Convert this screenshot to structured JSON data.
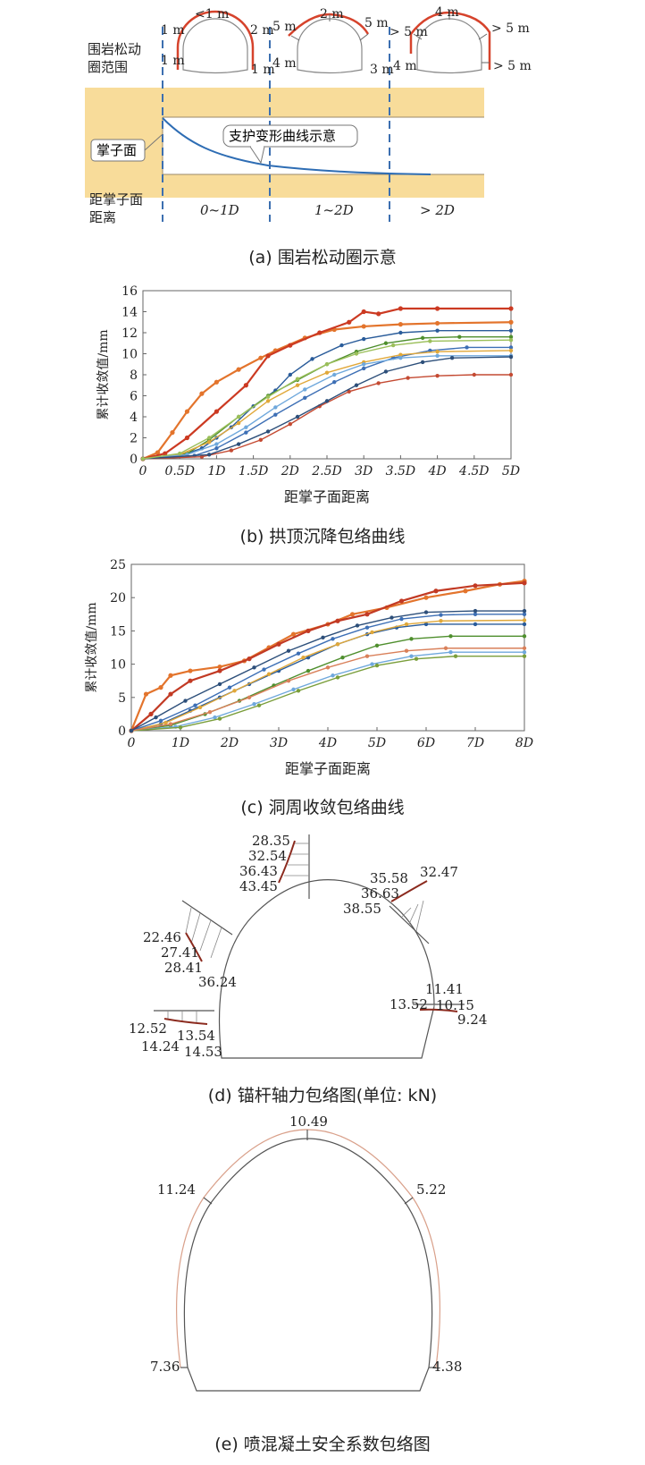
{
  "panel_a": {
    "caption": "(a) 围岩松动圈示意",
    "loose_zone_label_1": "围岩松动",
    "loose_zone_label_2": "圈范围",
    "face_label": "掌子面",
    "curve_label": "支护变形曲线示意",
    "dist_label_1": "距掌子面",
    "dist_label_2": "距离",
    "zones": [
      "0~1D",
      "1~2D",
      "> 2D"
    ],
    "tunnel1": {
      "crown": "<1 m",
      "left_top": "1 m",
      "right_top": "2 m",
      "left_side": "1 m",
      "right_side": "1 m"
    },
    "tunnel2": {
      "crown": "2 m",
      "left_top": "5 m",
      "right_top": "5 m",
      "left_side": "4 m",
      "right_side": "3 m"
    },
    "tunnel3": {
      "crown": "4 m",
      "left_top": "> 5 m",
      "right_top": "> 5 m",
      "left_side": "4 m",
      "right_side": "> 5 m"
    },
    "colors": {
      "band": "#f8dc9a",
      "curve": "#2e6db4",
      "zone_red": "#d6432c",
      "dash": "#3c6fb0"
    }
  },
  "panel_b": {
    "caption": "(b) 拱顶沉降包络曲线",
    "chart_data": {
      "type": "line",
      "ylabel": "累计收敛值/mm",
      "xlabel": "距掌子面距离",
      "x_ticks": [
        "0",
        "0.5D",
        "1D",
        "1.5D",
        "2D",
        "2.5D",
        "3D",
        "3.5D",
        "4D",
        "4.5D",
        "5D"
      ],
      "y_ticks": [
        "0",
        "2",
        "4",
        "6",
        "8",
        "10",
        "12",
        "14",
        "16"
      ],
      "xlim": [
        0,
        5
      ],
      "ylim": [
        0,
        16
      ],
      "series": [
        {
          "name": "s1",
          "color": "#e3742c",
          "x": [
            0,
            0.2,
            0.4,
            0.6,
            0.8,
            1.0,
            1.3,
            1.6,
            1.8,
            2.2,
            2.6,
            3.0,
            3.5,
            4.0,
            5.0
          ],
          "y": [
            0,
            0.6,
            2.5,
            4.5,
            6.2,
            7.3,
            8.5,
            9.6,
            10.3,
            11.5,
            12.3,
            12.6,
            12.8,
            12.9,
            13.0
          ]
        },
        {
          "name": "s2",
          "color": "#cc3a22",
          "x": [
            0,
            0.3,
            0.6,
            1.0,
            1.4,
            1.7,
            2.0,
            2.4,
            2.8,
            3.0,
            3.2,
            3.5,
            4.0,
            5.0
          ],
          "y": [
            0,
            0.5,
            2.0,
            4.5,
            7.0,
            9.8,
            10.8,
            12.0,
            13.0,
            14.0,
            13.8,
            14.3,
            14.3,
            14.3
          ]
        },
        {
          "name": "s3",
          "color": "#2a5c9a",
          "x": [
            0,
            0.5,
            0.8,
            1.0,
            1.2,
            1.5,
            1.8,
            2.0,
            2.3,
            2.7,
            3.0,
            3.5,
            4.0,
            5.0
          ],
          "y": [
            0,
            0.3,
            1.0,
            2.0,
            3.0,
            5.0,
            6.5,
            8.0,
            9.5,
            10.8,
            11.4,
            12.0,
            12.2,
            12.2
          ]
        },
        {
          "name": "s4",
          "color": "#4f8f2e",
          "x": [
            0,
            0.6,
            0.9,
            1.3,
            1.7,
            2.1,
            2.5,
            2.9,
            3.3,
            3.8,
            4.3,
            5.0
          ],
          "y": [
            0,
            0.5,
            1.8,
            4.0,
            6.0,
            7.5,
            9.0,
            10.2,
            11.0,
            11.5,
            11.6,
            11.6
          ]
        },
        {
          "name": "s5",
          "color": "#3d6fb5",
          "x": [
            0,
            0.7,
            1.0,
            1.4,
            1.8,
            2.2,
            2.6,
            3.0,
            3.4,
            3.9,
            4.4,
            5.0
          ],
          "y": [
            0,
            0.3,
            1.0,
            2.5,
            4.2,
            5.8,
            7.3,
            8.6,
            9.6,
            10.3,
            10.6,
            10.6
          ]
        },
        {
          "name": "s6",
          "color": "#c44a32",
          "x": [
            0,
            0.8,
            1.2,
            1.6,
            2.0,
            2.4,
            2.8,
            3.2,
            3.6,
            4.0,
            4.5,
            5.0
          ],
          "y": [
            0,
            0.2,
            0.8,
            1.8,
            3.3,
            5.0,
            6.4,
            7.2,
            7.7,
            7.9,
            8.0,
            8.0
          ]
        },
        {
          "name": "s7",
          "color": "#e0a83a",
          "x": [
            0,
            0.5,
            0.9,
            1.3,
            1.7,
            2.1,
            2.5,
            3.0,
            3.5,
            4.0,
            5.0
          ],
          "y": [
            0,
            0.4,
            1.6,
            3.4,
            5.5,
            7.0,
            8.2,
            9.2,
            9.9,
            10.2,
            10.3
          ]
        },
        {
          "name": "s8",
          "color": "#6fa8dc",
          "x": [
            0,
            0.6,
            1.0,
            1.4,
            1.8,
            2.2,
            2.6,
            3.0,
            3.5,
            4.0,
            5.0
          ],
          "y": [
            0,
            0.4,
            1.4,
            3.0,
            4.9,
            6.6,
            8.0,
            9.0,
            9.6,
            9.8,
            9.8
          ]
        },
        {
          "name": "s9",
          "color": "#2d4f7a",
          "x": [
            0,
            0.9,
            1.3,
            1.7,
            2.1,
            2.5,
            2.9,
            3.3,
            3.8,
            4.2,
            5.0
          ],
          "y": [
            0,
            0.4,
            1.4,
            2.6,
            4.0,
            5.5,
            7.0,
            8.3,
            9.2,
            9.6,
            9.7
          ]
        },
        {
          "name": "s10",
          "color": "#9bbf5a",
          "x": [
            0,
            0.5,
            0.9,
            1.3,
            1.7,
            2.1,
            2.5,
            2.9,
            3.4,
            3.9,
            5.0
          ],
          "y": [
            0,
            0.5,
            2.0,
            4.0,
            5.9,
            7.6,
            9.0,
            10.0,
            10.8,
            11.2,
            11.3
          ]
        }
      ]
    }
  },
  "panel_c": {
    "caption": "(c) 洞周收敛包络曲线",
    "chart_data": {
      "type": "line",
      "ylabel": "累计收敛值/mm",
      "xlabel": "距掌子面距离",
      "x_ticks": [
        "0",
        "1D",
        "2D",
        "3D",
        "4D",
        "5D",
        "6D",
        "7D",
        "8D"
      ],
      "y_ticks": [
        "0",
        "5",
        "10",
        "15",
        "20",
        "25"
      ],
      "xlim": [
        0,
        8
      ],
      "ylim": [
        0,
        25
      ],
      "series": [
        {
          "name": "s1",
          "color": "#e3742c",
          "x": [
            0,
            0.3,
            0.6,
            0.8,
            1.2,
            1.8,
            2.3,
            2.8,
            3.3,
            4.0,
            4.5,
            5.2,
            6.0,
            6.8,
            7.5,
            8.0
          ],
          "y": [
            0,
            5.5,
            6.5,
            8.3,
            9.0,
            9.6,
            10.5,
            12.5,
            14.5,
            16.0,
            17.5,
            18.5,
            20.0,
            21.0,
            22.0,
            22.5
          ]
        },
        {
          "name": "s2",
          "color": "#c23a24",
          "x": [
            0,
            0.4,
            0.8,
            1.2,
            1.8,
            2.4,
            3.0,
            3.6,
            4.2,
            4.8,
            5.5,
            6.2,
            7.0,
            8.0
          ],
          "y": [
            0,
            2.5,
            5.5,
            7.5,
            9.0,
            10.8,
            13.0,
            15.0,
            16.5,
            17.5,
            19.5,
            21.0,
            21.8,
            22.2
          ]
        },
        {
          "name": "s3",
          "color": "#2a5c9a",
          "x": [
            0,
            0.6,
            1.2,
            1.8,
            2.4,
            3.0,
            3.6,
            4.2,
            4.8,
            5.4,
            6.0,
            7.0,
            8.0
          ],
          "y": [
            0,
            1.0,
            3.0,
            5.0,
            7.0,
            9.0,
            11.0,
            13.0,
            14.5,
            15.5,
            16.0,
            16.0,
            16.0
          ]
        },
        {
          "name": "s4",
          "color": "#4f8f2e",
          "x": [
            0,
            0.8,
            1.5,
            2.2,
            2.9,
            3.6,
            4.3,
            5.0,
            5.7,
            6.5,
            8.0
          ],
          "y": [
            0,
            0.8,
            2.5,
            4.5,
            6.8,
            9.0,
            11.0,
            12.8,
            13.8,
            14.2,
            14.2
          ]
        },
        {
          "name": "s5",
          "color": "#e0a83a",
          "x": [
            0,
            0.7,
            1.4,
            2.1,
            2.8,
            3.5,
            4.2,
            4.9,
            5.6,
            6.3,
            8.0
          ],
          "y": [
            0,
            1.2,
            3.5,
            6.0,
            8.5,
            11.0,
            13.0,
            14.8,
            16.0,
            16.5,
            16.6
          ]
        },
        {
          "name": "s6",
          "color": "#6fa8dc",
          "x": [
            0,
            0.9,
            1.7,
            2.5,
            3.3,
            4.1,
            4.9,
            5.7,
            6.5,
            8.0
          ],
          "y": [
            0,
            0.6,
            2.0,
            4.0,
            6.2,
            8.3,
            10.0,
            11.2,
            11.8,
            11.8
          ]
        },
        {
          "name": "s7",
          "color": "#3d6fb5",
          "x": [
            0,
            0.6,
            1.3,
            2.0,
            2.7,
            3.4,
            4.1,
            4.8,
            5.5,
            6.3,
            7.0,
            8.0
          ],
          "y": [
            0,
            1.5,
            3.8,
            6.5,
            9.2,
            11.6,
            13.8,
            15.5,
            16.8,
            17.4,
            17.5,
            17.5
          ]
        },
        {
          "name": "s8",
          "color": "#7a9e3b",
          "x": [
            0,
            1.0,
            1.8,
            2.6,
            3.4,
            4.2,
            5.0,
            5.8,
            6.6,
            8.0
          ],
          "y": [
            0,
            0.5,
            1.8,
            3.8,
            6.0,
            8.0,
            9.8,
            10.8,
            11.2,
            11.2
          ]
        },
        {
          "name": "s9",
          "color": "#d9805a",
          "x": [
            0,
            0.8,
            1.6,
            2.4,
            3.2,
            4.0,
            4.8,
            5.6,
            6.4,
            8.0
          ],
          "y": [
            0,
            1.0,
            2.8,
            5.0,
            7.5,
            9.5,
            11.2,
            12.0,
            12.4,
            12.4
          ]
        },
        {
          "name": "s10",
          "color": "#2d4f7a",
          "x": [
            0,
            0.5,
            1.1,
            1.8,
            2.5,
            3.2,
            3.9,
            4.6,
            5.3,
            6.0,
            7.0,
            8.0
          ],
          "y": [
            0,
            2.0,
            4.5,
            7.0,
            9.5,
            12.0,
            14.0,
            15.8,
            17.0,
            17.8,
            18.0,
            18.0
          ]
        }
      ]
    }
  },
  "panel_d": {
    "caption": "(d) 锚杆轴力包络图(单位: kN)",
    "labels": {
      "top_left": [
        "28.35",
        "32.54",
        "36.43",
        "43.45"
      ],
      "top_right": [
        "35.58",
        "32.47",
        "36.63",
        "38.55"
      ],
      "left_upper": [
        "22.46",
        "27.41",
        "28.41",
        "36.24"
      ],
      "right_side": [
        "11.41",
        "13.52",
        "10.15",
        "9.24"
      ],
      "left_lower": [
        "12.52",
        "13.54",
        "14.24",
        "14.53"
      ]
    }
  },
  "panel_e": {
    "caption": "(e) 喷混凝土安全系数包络图",
    "labels": {
      "crown": "10.49",
      "upper_left": "11.24",
      "upper_right": "5.22",
      "lower_left": "7.36",
      "lower_right": "4.38"
    }
  }
}
